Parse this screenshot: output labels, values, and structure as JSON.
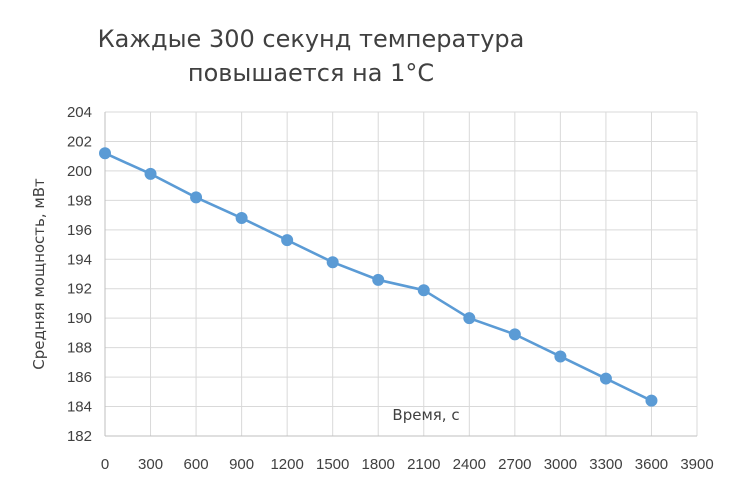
{
  "chart_data": {
    "type": "line",
    "title_lines": [
      "Каждые 300 секунд температура",
      "повышается на 1°C"
    ],
    "xlabel": "Время, с",
    "ylabel": "Средняя мощность, мВт",
    "xlim": [
      0,
      3900
    ],
    "ylim": [
      182,
      204
    ],
    "x_ticks": [
      0,
      300,
      600,
      900,
      1200,
      1500,
      1800,
      2100,
      2400,
      2700,
      3000,
      3300,
      3600,
      3900
    ],
    "y_ticks": [
      182,
      184,
      186,
      188,
      190,
      192,
      194,
      196,
      198,
      200,
      202,
      204
    ],
    "grid": true,
    "legend": "none",
    "series": [
      {
        "color": "#5b9bd5",
        "x": [
          0,
          300,
          600,
          900,
          1200,
          1500,
          1800,
          2100,
          2400,
          2700,
          3000,
          3300,
          3600
        ],
        "values": [
          201.2,
          199.8,
          198.2,
          196.8,
          195.3,
          193.8,
          192.6,
          191.9,
          190.0,
          188.9,
          187.4,
          185.9,
          184.4
        ]
      }
    ]
  }
}
